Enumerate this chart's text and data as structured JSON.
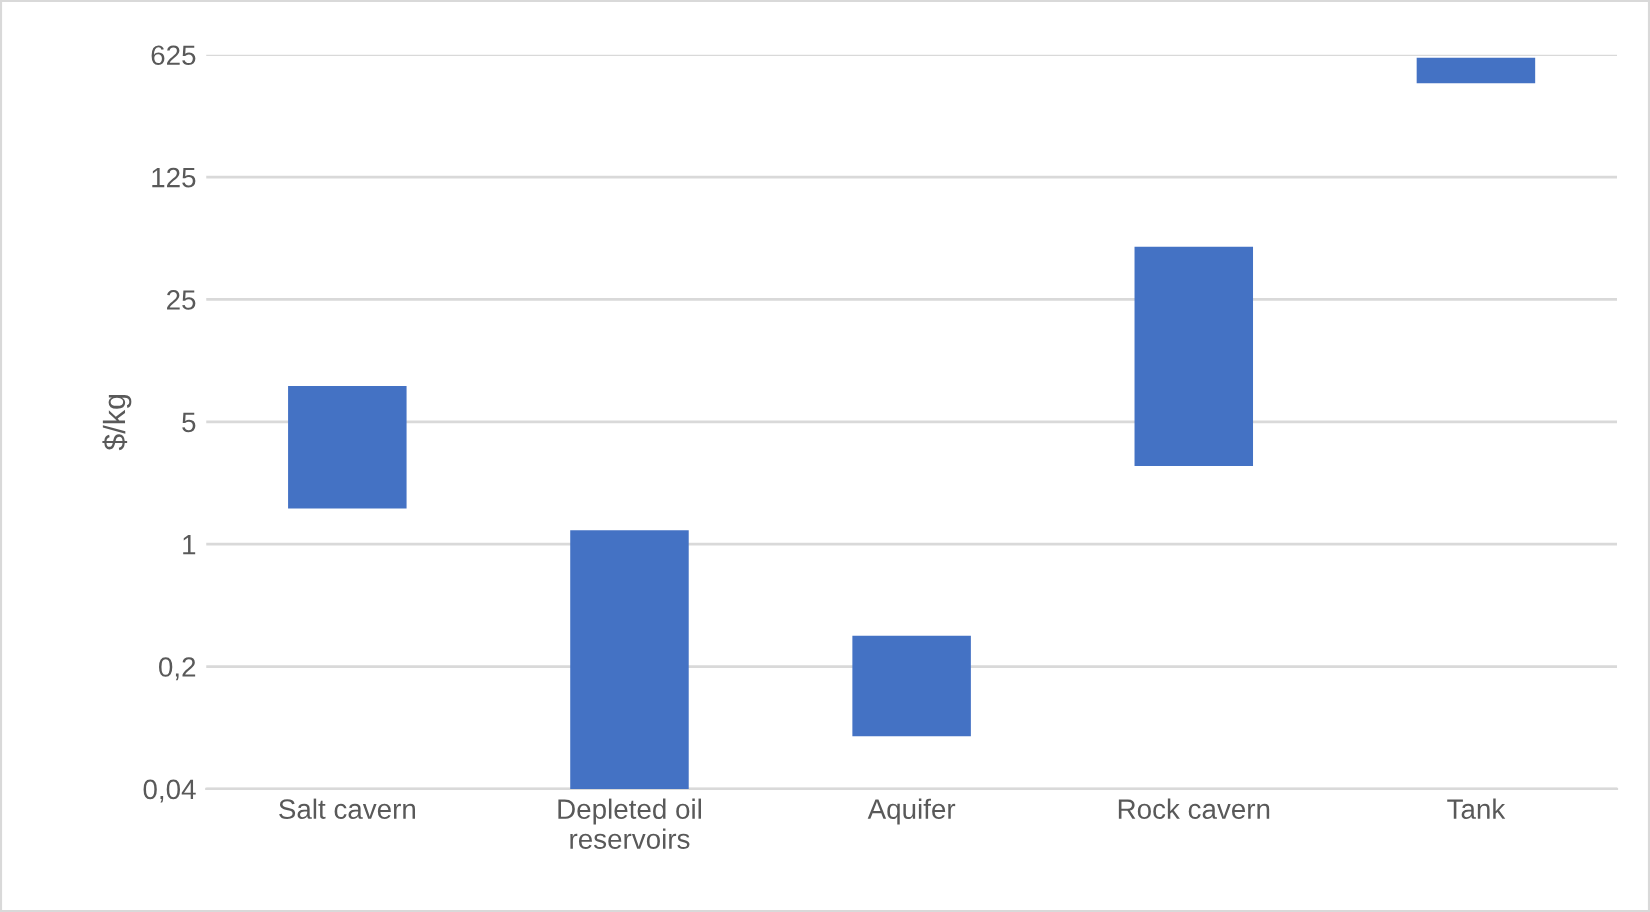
{
  "chart_data": {
    "type": "bar",
    "ylabel": "$/kg",
    "categories": [
      "Salt cavern",
      "Depleted oil\nreservoirs",
      "Aquifer",
      "Rock cavern",
      "Tank"
    ],
    "base": [
      1.6,
      0.04,
      0.08,
      2.8,
      430
    ],
    "values": [
      6.4,
      1.16,
      0.22,
      47.2,
      170
    ],
    "color": "#4472c4",
    "log": "y",
    "ylim": [
      0.04,
      625
    ],
    "yticks": [
      {
        "value": 0.04,
        "label": "0,04"
      },
      {
        "value": 0.2,
        "label": "0,2"
      },
      1,
      5,
      25,
      125,
      625
    ],
    "grid": "y"
  }
}
